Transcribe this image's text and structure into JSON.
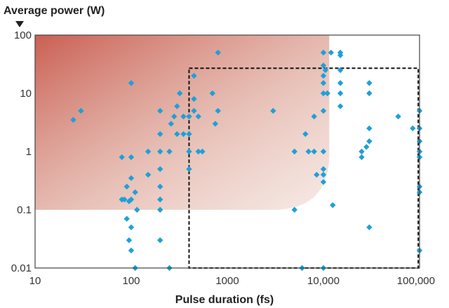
{
  "chart_data": {
    "type": "scatter",
    "title": "",
    "xlabel": "Pulse duration (fs)",
    "ylabel": "Average power (W)",
    "x_scale": "log",
    "y_scale": "log",
    "xlim": [
      10,
      100000
    ],
    "ylim": [
      0.01,
      100
    ],
    "x_ticks": [
      {
        "value": 10,
        "label": "10"
      },
      {
        "value": 100,
        "label": "100"
      },
      {
        "value": 1000,
        "label": "1000"
      },
      {
        "value": 10000,
        "label": "10,000"
      },
      {
        "value": 100000,
        "label": "100,000"
      }
    ],
    "y_ticks": [
      {
        "value": 100,
        "label": "100"
      },
      {
        "value": 10,
        "label": "10"
      },
      {
        "value": 1,
        "label": "1"
      },
      {
        "value": 0.1,
        "label": "0.1"
      },
      {
        "value": 0.01,
        "label": "0.01"
      }
    ],
    "grid": false,
    "legend": "none",
    "shaded_region": {
      "x_range": [
        10,
        11500
      ],
      "y_range": [
        0.1,
        100
      ],
      "color": "#c8564a"
    },
    "dashed_box": {
      "x_range": [
        400,
        97000
      ],
      "y_range": [
        0.01,
        27
      ]
    },
    "marker_color": "#1ea0d8",
    "series": [
      {
        "points": [
          [
            25,
            3.5
          ],
          [
            30,
            5
          ],
          [
            80,
            0.8
          ],
          [
            80,
            0.15
          ],
          [
            85,
            0.15
          ],
          [
            90,
            0.25
          ],
          [
            90,
            0.07
          ],
          [
            95,
            0.14
          ],
          [
            95,
            0.03
          ],
          [
            100,
            15
          ],
          [
            100,
            0.8
          ],
          [
            100,
            0.35
          ],
          [
            100,
            0.15
          ],
          [
            100,
            0.05
          ],
          [
            100,
            0.02
          ],
          [
            110,
            0.01
          ],
          [
            110,
            0.2
          ],
          [
            115,
            0.1
          ],
          [
            150,
            1
          ],
          [
            150,
            0.4
          ],
          [
            200,
            5
          ],
          [
            200,
            2
          ],
          [
            200,
            1
          ],
          [
            200,
            0.5
          ],
          [
            200,
            0.25
          ],
          [
            200,
            0.15
          ],
          [
            200,
            0.1
          ],
          [
            200,
            0.03
          ],
          [
            250,
            1
          ],
          [
            250,
            0.01
          ],
          [
            260,
            3
          ],
          [
            280,
            4
          ],
          [
            300,
            6
          ],
          [
            300,
            2
          ],
          [
            320,
            10
          ],
          [
            350,
            2
          ],
          [
            350,
            4
          ],
          [
            400,
            2
          ],
          [
            400,
            4
          ],
          [
            400,
            1
          ],
          [
            400,
            0.5
          ],
          [
            450,
            20
          ],
          [
            450,
            8
          ],
          [
            450,
            5
          ],
          [
            500,
            1
          ],
          [
            500,
            4
          ],
          [
            550,
            1
          ],
          [
            700,
            10
          ],
          [
            750,
            3
          ],
          [
            800,
            50
          ],
          [
            800,
            5
          ],
          [
            3000,
            5
          ],
          [
            5000,
            1
          ],
          [
            5000,
            0.1
          ],
          [
            6000,
            0.01
          ],
          [
            6500,
            2
          ],
          [
            7000,
            1
          ],
          [
            8000,
            1
          ],
          [
            8000,
            4
          ],
          [
            8500,
            0.4
          ],
          [
            10000,
            50
          ],
          [
            10000,
            30
          ],
          [
            10000,
            20
          ],
          [
            10000,
            15
          ],
          [
            10000,
            10
          ],
          [
            10000,
            5
          ],
          [
            10000,
            1
          ],
          [
            10000,
            0.5
          ],
          [
            10000,
            0.4
          ],
          [
            10000,
            0.3
          ],
          [
            10000,
            0.01
          ],
          [
            10500,
            25
          ],
          [
            11000,
            10
          ],
          [
            12000,
            50
          ],
          [
            12500,
            0.12
          ],
          [
            15000,
            50
          ],
          [
            15000,
            45
          ],
          [
            15000,
            25
          ],
          [
            15000,
            15
          ],
          [
            15000,
            10
          ],
          [
            15000,
            6
          ],
          [
            25000,
            1
          ],
          [
            25000,
            0.8
          ],
          [
            28000,
            1.2
          ],
          [
            30000,
            15
          ],
          [
            30000,
            10
          ],
          [
            30000,
            2.5
          ],
          [
            30000,
            1.5
          ],
          [
            30000,
            0.05
          ],
          [
            60000,
            4
          ],
          [
            85000,
            2.5
          ],
          [
            100000,
            5
          ],
          [
            100000,
            2.5
          ],
          [
            100000,
            1.5
          ],
          [
            100000,
            1
          ],
          [
            100000,
            0.8
          ],
          [
            100000,
            0.25
          ],
          [
            100000,
            0.2
          ],
          [
            100000,
            0.02
          ]
        ]
      }
    ]
  }
}
